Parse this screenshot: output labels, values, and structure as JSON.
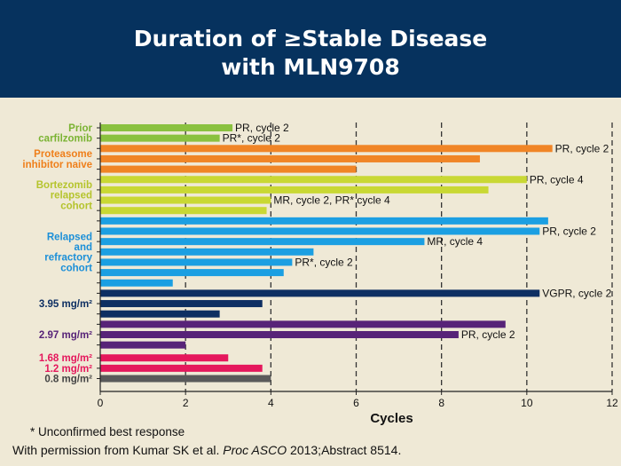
{
  "title_line1": "Duration of ≥Stable Disease",
  "title_line2": "with MLN9708",
  "footnote": "* Unconfirmed best response",
  "citation": {
    "prefix": "With permission from Kumar SK et al.",
    "journal": "Proc ASCO",
    "suffix": "2013;Abstract 8514."
  },
  "chart_data": {
    "type": "bar",
    "orientation": "horizontal",
    "xlabel": "Cycles",
    "xlim": [
      0,
      12
    ],
    "xticks": [
      0,
      2,
      4,
      6,
      8,
      10,
      12
    ],
    "grid": "dashed vertical at 2, 4, 6, 8, 10, 12",
    "groups": [
      {
        "label": "Prior\ncarfilzomib",
        "color": "#8ac13f",
        "label_color": "#7ab332",
        "bars": [
          {
            "value": 3.1,
            "annotation": "PR, cycle 2"
          },
          {
            "value": 2.8,
            "annotation": "PR*, cycle 2"
          }
        ]
      },
      {
        "label": "Proteasome\ninhibitor naive",
        "color": "#f08526",
        "label_color": "#ef7f1a",
        "bars": [
          {
            "value": 10.6,
            "annotation": "PR, cycle 2"
          },
          {
            "value": 8.9,
            "annotation": ""
          },
          {
            "value": 6.0,
            "annotation": ""
          }
        ]
      },
      {
        "label": "Bortezomib\nrelapsed\ncohort",
        "color": "#c9d834",
        "label_color": "#b5c42c",
        "bars": [
          {
            "value": 10.0,
            "annotation": "PR, cycle 4"
          },
          {
            "value": 9.1,
            "annotation": ""
          },
          {
            "value": 4.0,
            "annotation": "MR, cycle 2, PR* cycle 4"
          },
          {
            "value": 3.9,
            "annotation": ""
          }
        ]
      },
      {
        "label": "Relapsed\nand\nrefractory\ncohort",
        "color": "#1b9fe2",
        "label_color": "#1b8fd8",
        "bars": [
          {
            "value": 10.5,
            "annotation": ""
          },
          {
            "value": 10.3,
            "annotation": "PR, cycle 2"
          },
          {
            "value": 7.6,
            "annotation": "MR, cycle 4"
          },
          {
            "value": 5.0,
            "annotation": ""
          },
          {
            "value": 4.5,
            "annotation": "PR*, cycle 2"
          },
          {
            "value": 4.3,
            "annotation": ""
          },
          {
            "value": 1.7,
            "annotation": ""
          }
        ]
      },
      {
        "label": "3.95 mg/m²",
        "color": "#0e2f62",
        "label_color": "#0e2f62",
        "bars": [
          {
            "value": 10.3,
            "annotation": "VGPR, cycle 2"
          },
          {
            "value": 3.8,
            "annotation": ""
          },
          {
            "value": 2.8,
            "annotation": ""
          }
        ]
      },
      {
        "label": "2.97 mg/m²",
        "color": "#572378",
        "label_color": "#572378",
        "bars": [
          {
            "value": 9.5,
            "annotation": ""
          },
          {
            "value": 8.4,
            "annotation": "PR, cycle 2"
          },
          {
            "value": 2.0,
            "annotation": ""
          }
        ]
      },
      {
        "label": "1.68 mg/m²",
        "color": "#e5175c",
        "label_color": "#e5175c",
        "bars": [
          {
            "value": 3.0,
            "annotation": ""
          }
        ]
      },
      {
        "label": "1.2 mg/m²",
        "color": "#e5175c",
        "label_color": "#e5175c",
        "bars": [
          {
            "value": 3.8,
            "annotation": ""
          }
        ]
      },
      {
        "label": "0.8 mg/m²",
        "color": "#5a5a5a",
        "label_color": "#444444",
        "bars": [
          {
            "value": 4.0,
            "annotation": ""
          }
        ]
      }
    ]
  }
}
